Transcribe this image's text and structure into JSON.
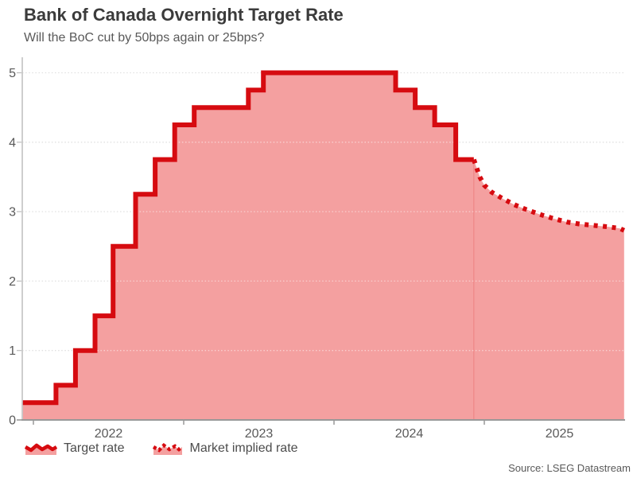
{
  "header": {
    "title": "Bank of Canada Overnight Target Rate",
    "subtitle": "Will the BoC cut by 50bps again or 25bps?"
  },
  "legend": {
    "items": [
      {
        "label": "Target rate",
        "style": "solid"
      },
      {
        "label": "Market implied rate",
        "style": "dotted"
      }
    ]
  },
  "source": {
    "text": "Source: LSEG Datastream"
  },
  "colors": {
    "line": "#d60b10",
    "fill": "#f4a0a0",
    "grid": "#e0e0e0",
    "grid_over_fill": "rgba(255,255,255,0.5)",
    "axis": "#999999",
    "axis_minor": "#bdbdbd",
    "text": "#595959",
    "title": "#3b3b3b",
    "forecast_divider": "rgba(214,11,16,0.14)"
  },
  "chart_data": {
    "type": "line",
    "title": "Bank of Canada Overnight Target Rate",
    "subtitle": "Will the BoC cut by 50bps again or 25bps?",
    "x_axis": {
      "unit": "year",
      "tick_years": [
        2022,
        2023,
        2024,
        2025
      ],
      "tick_labels": [
        "2022",
        "2023",
        "2024",
        "2025"
      ],
      "range": [
        2021.93,
        2025.93
      ],
      "labels_centered_mid_year": true
    },
    "y_axis": {
      "ticks": [
        0,
        1,
        2,
        3,
        4,
        5
      ],
      "tick_labels": [
        "0",
        "1",
        "2",
        "3",
        "4",
        "5"
      ],
      "range": [
        0,
        5.25
      ],
      "grid": "dotted"
    },
    "series": [
      {
        "name": "Target rate",
        "style": "solid-step",
        "points": [
          [
            2021.93,
            0.25
          ],
          [
            2022.15,
            0.5
          ],
          [
            2022.28,
            1.0
          ],
          [
            2022.41,
            1.5
          ],
          [
            2022.53,
            2.5
          ],
          [
            2022.68,
            3.25
          ],
          [
            2022.81,
            3.75
          ],
          [
            2022.94,
            4.25
          ],
          [
            2023.07,
            4.5
          ],
          [
            2023.43,
            4.75
          ],
          [
            2023.53,
            5.0
          ],
          [
            2024.41,
            4.75
          ],
          [
            2024.54,
            4.5
          ],
          [
            2024.67,
            4.25
          ],
          [
            2024.81,
            3.75
          ],
          [
            2024.93,
            3.75
          ]
        ]
      },
      {
        "name": "Market implied rate",
        "style": "dotted",
        "points": [
          [
            2024.93,
            3.75
          ],
          [
            2024.97,
            3.5
          ],
          [
            2025.0,
            3.38
          ],
          [
            2025.05,
            3.28
          ],
          [
            2025.12,
            3.19
          ],
          [
            2025.2,
            3.1
          ],
          [
            2025.28,
            3.03
          ],
          [
            2025.37,
            2.96
          ],
          [
            2025.46,
            2.9
          ],
          [
            2025.55,
            2.85
          ],
          [
            2025.64,
            2.82
          ],
          [
            2025.74,
            2.8
          ],
          [
            2025.83,
            2.78
          ],
          [
            2025.9,
            2.76
          ],
          [
            2025.93,
            2.73
          ]
        ]
      }
    ],
    "source": "Source: LSEG Datastream"
  }
}
